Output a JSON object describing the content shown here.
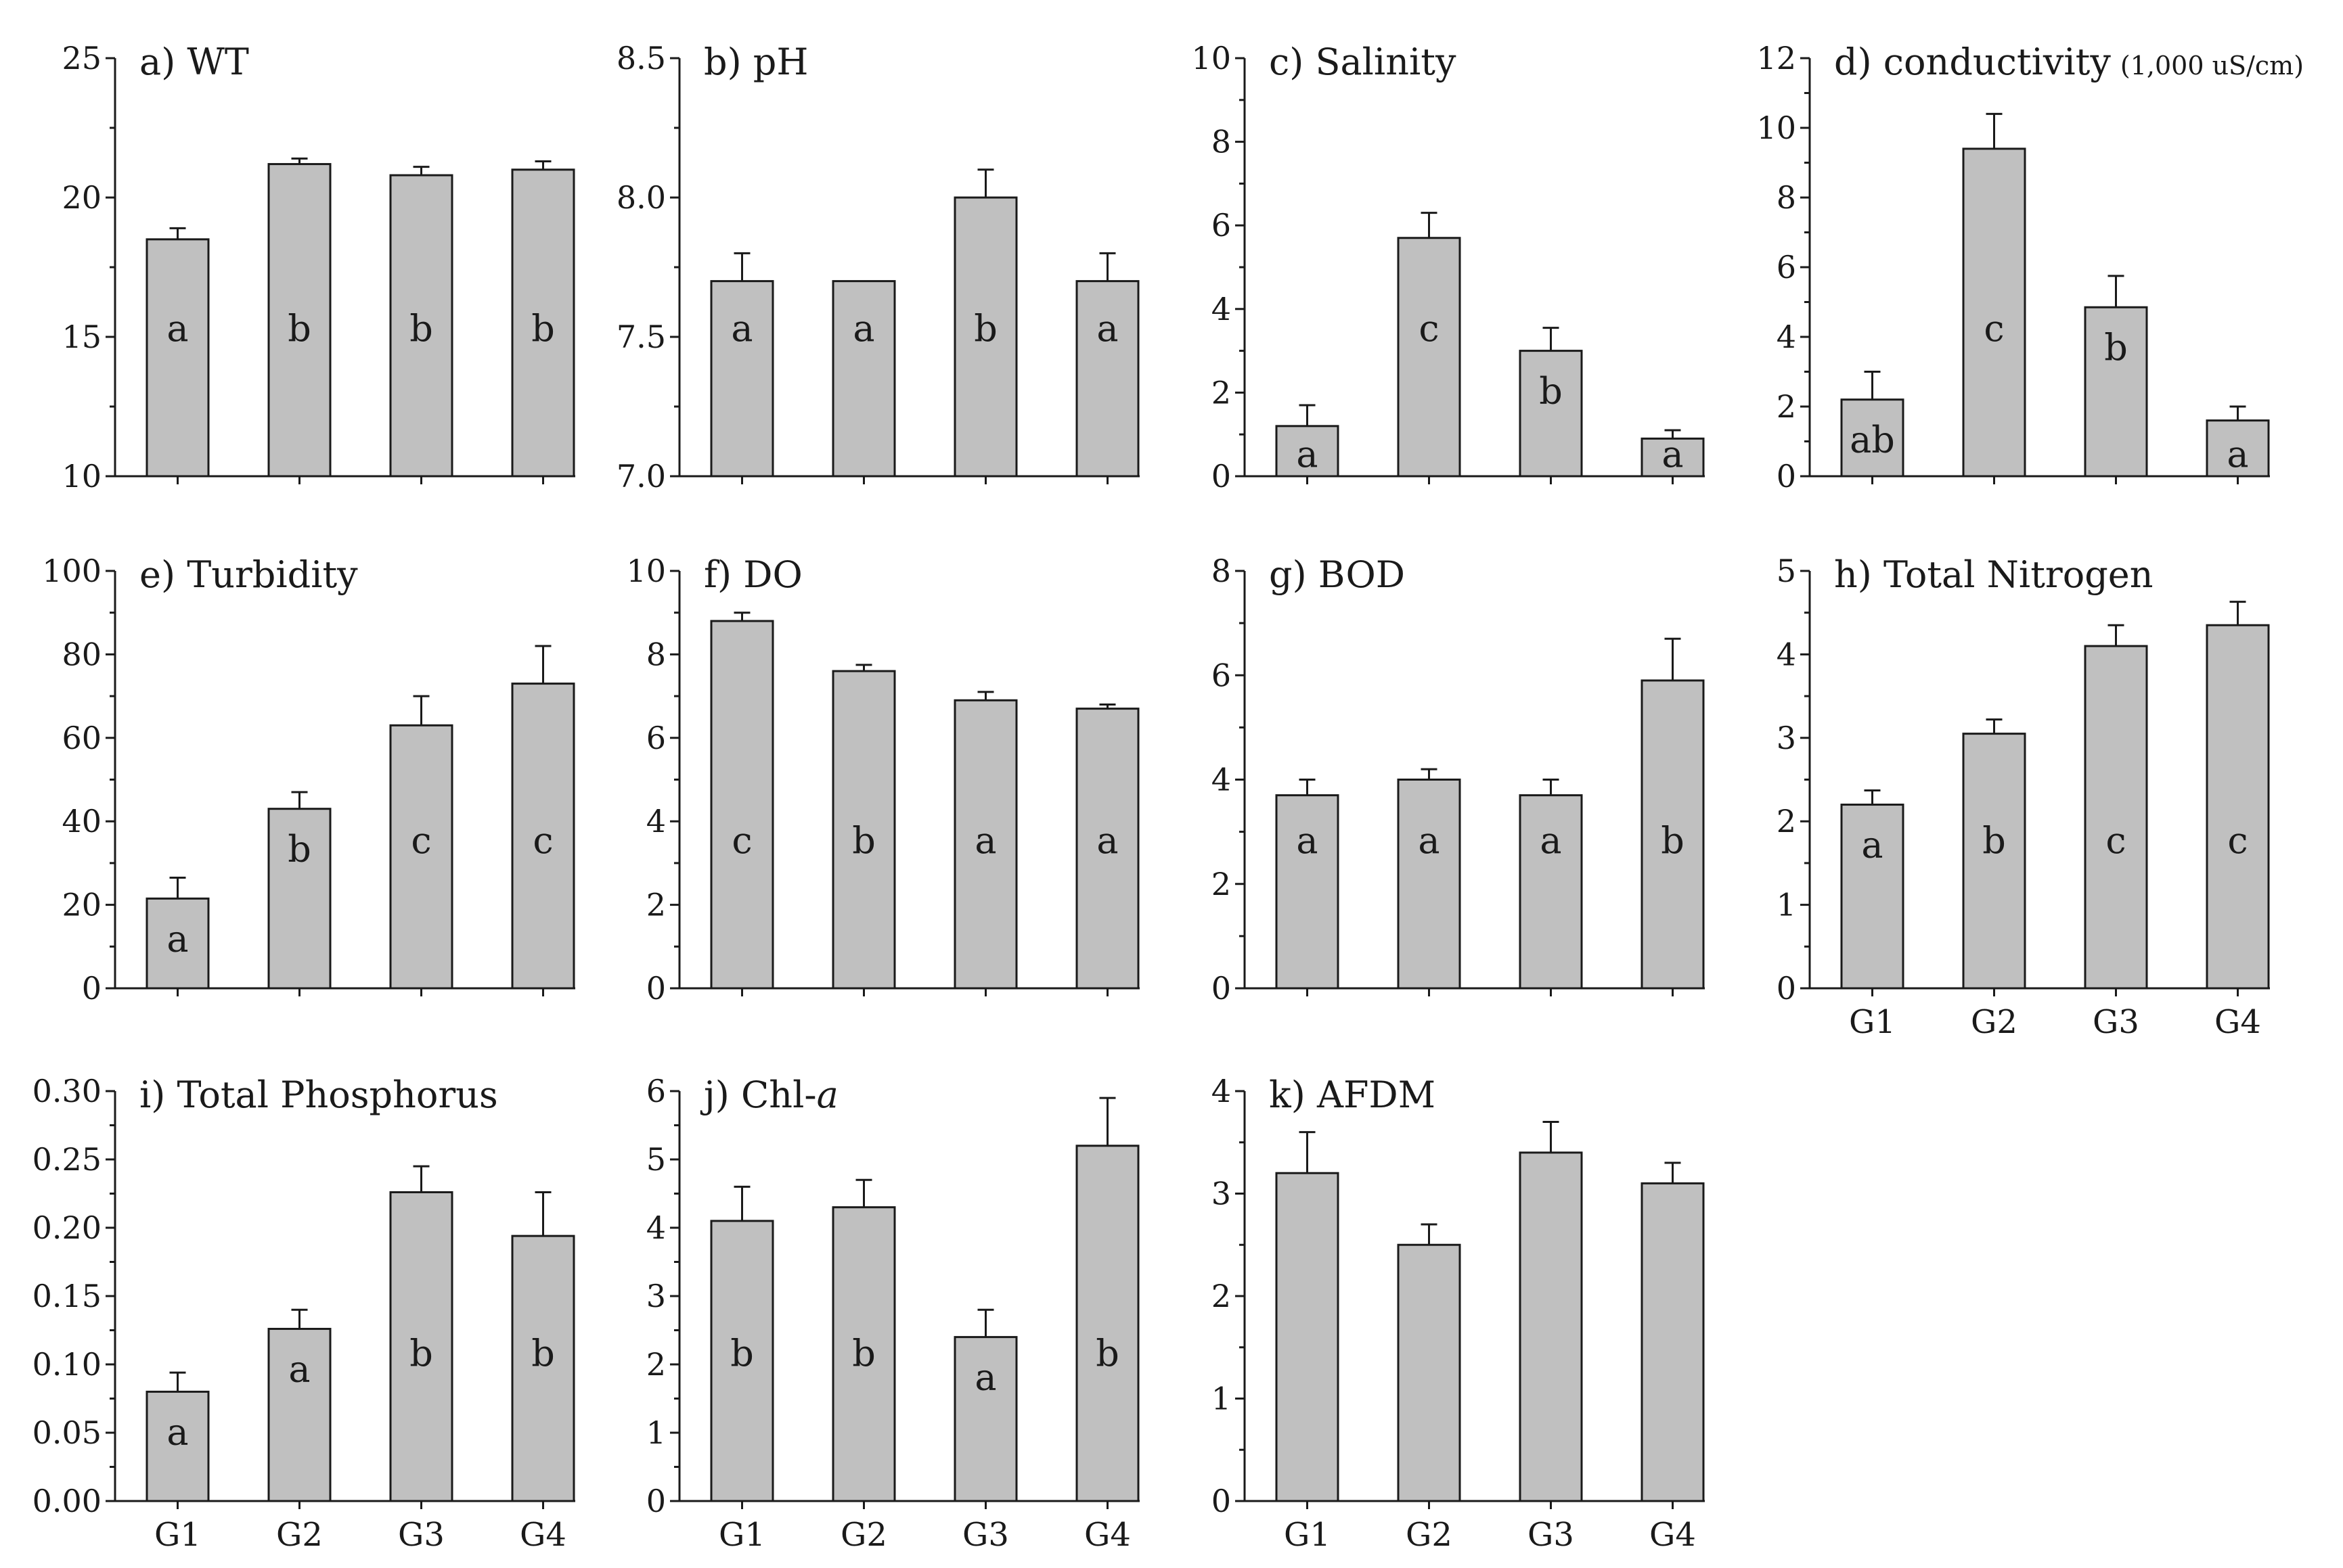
{
  "chart_data": [
    {
      "id": "a",
      "type": "bar",
      "title": "a) WT",
      "categories": [
        "G1",
        "G2",
        "G3",
        "G4"
      ],
      "values": [
        18.5,
        21.2,
        20.8,
        21.0
      ],
      "errors": [
        0.4,
        0.2,
        0.3,
        0.3
      ],
      "letters": [
        "a",
        "b",
        "b",
        "b"
      ],
      "ylim": [
        10,
        25
      ],
      "yticks": [
        "10",
        "15",
        "20",
        "25"
      ],
      "show_x_labels": false
    },
    {
      "id": "b",
      "type": "bar",
      "title": "b) pH",
      "categories": [
        "G1",
        "G2",
        "G3",
        "G4"
      ],
      "values": [
        7.7,
        7.7,
        8.0,
        7.7
      ],
      "errors": [
        0.1,
        0,
        0.1,
        0.1
      ],
      "letters": [
        "a",
        "a",
        "b",
        "a"
      ],
      "ylim": [
        7.0,
        8.5
      ],
      "yticks": [
        "7.0",
        "7.5",
        "8.0",
        "8.5"
      ],
      "show_x_labels": false
    },
    {
      "id": "c",
      "type": "bar",
      "title": "c) Salinity",
      "categories": [
        "G1",
        "G2",
        "G3",
        "G4"
      ],
      "values": [
        1.2,
        5.7,
        3.0,
        0.9
      ],
      "errors": [
        0.5,
        0.6,
        0.55,
        0.2
      ],
      "letters": [
        "a",
        "c",
        "b",
        "a"
      ],
      "ylim": [
        0,
        10
      ],
      "yticks": [
        "0",
        "2",
        "4",
        "6",
        "8",
        "10"
      ],
      "show_x_labels": false
    },
    {
      "id": "d",
      "type": "bar",
      "title": "d) conductivity",
      "title_suffix": "(1,000 uS/cm)",
      "categories": [
        "G1",
        "G2",
        "G3",
        "G4"
      ],
      "values": [
        2.2,
        9.4,
        4.85,
        1.6
      ],
      "errors": [
        0.8,
        1.0,
        0.9,
        0.4
      ],
      "letters": [
        "ab",
        "c",
        "b",
        "a"
      ],
      "ylim": [
        0,
        12
      ],
      "yticks": [
        "0",
        "2",
        "4",
        "6",
        "8",
        "10",
        "12"
      ],
      "show_x_labels": false
    },
    {
      "id": "e",
      "type": "bar",
      "title": "e) Turbidity",
      "categories": [
        "G1",
        "G2",
        "G3",
        "G4"
      ],
      "values": [
        21.5,
        43,
        63,
        73
      ],
      "errors": [
        5,
        4,
        7,
        9
      ],
      "letters": [
        "a",
        "b",
        "c",
        "c"
      ],
      "ylim": [
        0,
        100
      ],
      "yticks": [
        "0",
        "20",
        "40",
        "60",
        "80",
        "100"
      ],
      "show_x_labels": false
    },
    {
      "id": "f",
      "type": "bar",
      "title": "f) DO",
      "categories": [
        "G1",
        "G2",
        "G3",
        "G4"
      ],
      "values": [
        8.8,
        7.6,
        6.9,
        6.7
      ],
      "errors": [
        0.2,
        0.15,
        0.2,
        0.1
      ],
      "letters": [
        "c",
        "b",
        "a",
        "a"
      ],
      "ylim": [
        0,
        10
      ],
      "yticks": [
        "0",
        "2",
        "4",
        "6",
        "8",
        "10"
      ],
      "show_x_labels": false
    },
    {
      "id": "g",
      "type": "bar",
      "title": "g) BOD",
      "categories": [
        "G1",
        "G2",
        "G3",
        "G4"
      ],
      "values": [
        3.7,
        4.0,
        3.7,
        5.9
      ],
      "errors": [
        0.3,
        0.2,
        0.3,
        0.8
      ],
      "letters": [
        "a",
        "a",
        "a",
        "b"
      ],
      "ylim": [
        0,
        8
      ],
      "yticks": [
        "0",
        "2",
        "4",
        "6",
        "8"
      ],
      "show_x_labels": false
    },
    {
      "id": "h",
      "type": "bar",
      "title": "h) Total Nitrogen",
      "categories": [
        "G1",
        "G2",
        "G3",
        "G4"
      ],
      "values": [
        2.2,
        3.05,
        4.1,
        4.35
      ],
      "errors": [
        0.17,
        0.17,
        0.25,
        0.28
      ],
      "letters": [
        "a",
        "b",
        "c",
        "c"
      ],
      "ylim": [
        0,
        5
      ],
      "yticks": [
        "0",
        "1",
        "2",
        "3",
        "4",
        "5"
      ],
      "show_x_labels": true
    },
    {
      "id": "i",
      "type": "bar",
      "title": "i) Total Phosphorus",
      "categories": [
        "G1",
        "G2",
        "G3",
        "G4"
      ],
      "values": [
        0.08,
        0.126,
        0.226,
        0.194
      ],
      "errors": [
        0.014,
        0.014,
        0.019,
        0.032
      ],
      "letters": [
        "a",
        "a",
        "b",
        "b"
      ],
      "ylim": [
        0,
        0.3
      ],
      "yticks": [
        "0.00",
        "0.05",
        "0.10",
        "0.15",
        "0.20",
        "0.25",
        "0.30"
      ],
      "show_x_labels": true
    },
    {
      "id": "j",
      "type": "bar",
      "title": "j) Chl-",
      "title_italic": "a",
      "categories": [
        "G1",
        "G2",
        "G3",
        "G4"
      ],
      "values": [
        4.1,
        4.3,
        2.4,
        5.2
      ],
      "errors": [
        0.5,
        0.4,
        0.4,
        0.7
      ],
      "letters": [
        "b",
        "b",
        "a",
        "b"
      ],
      "ylim": [
        0,
        6
      ],
      "yticks": [
        "0",
        "1",
        "2",
        "3",
        "4",
        "5",
        "6"
      ],
      "show_x_labels": true
    },
    {
      "id": "k",
      "type": "bar",
      "title": "k) AFDM",
      "categories": [
        "G1",
        "G2",
        "G3",
        "G4"
      ],
      "values": [
        3.2,
        2.5,
        3.4,
        3.1
      ],
      "errors": [
        0.4,
        0.2,
        0.3,
        0.2
      ],
      "letters": [
        "",
        "",
        "",
        ""
      ],
      "ylim": [
        0,
        4
      ],
      "yticks": [
        "0",
        "1",
        "2",
        "3",
        "4"
      ],
      "show_x_labels": true
    }
  ],
  "colors": {
    "bar_fill": "#c0c0c0",
    "stroke": "#1a1a1a"
  }
}
